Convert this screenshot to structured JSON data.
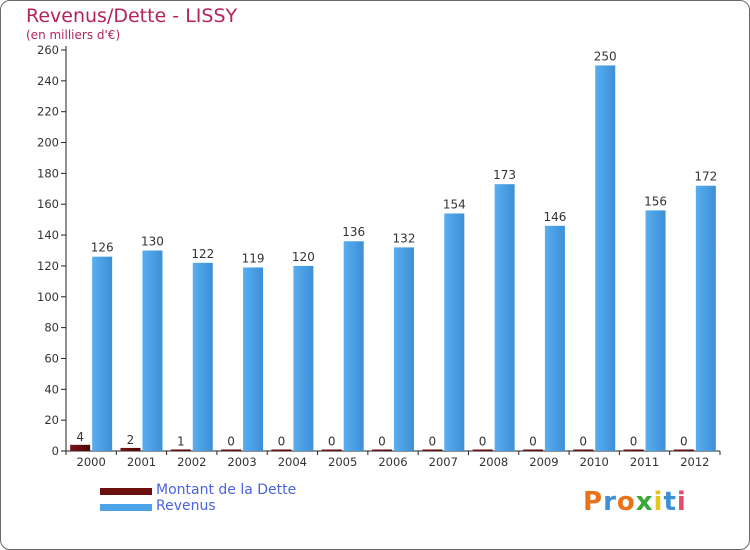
{
  "chart_data": {
    "type": "bar",
    "title": "Revenus/Dette - LISSY",
    "subtitle": "(en milliers d'€)",
    "categories": [
      "2000",
      "2001",
      "2002",
      "2003",
      "2004",
      "2005",
      "2006",
      "2007",
      "2008",
      "2009",
      "2010",
      "2011",
      "2012"
    ],
    "series": [
      {
        "name": "Montant de la Dette",
        "color": "#6b0f0f",
        "values": [
          4,
          2,
          1,
          0,
          0,
          0,
          0,
          0,
          0,
          0,
          0,
          0,
          0
        ]
      },
      {
        "name": "Revenus",
        "color": "#4da3e8",
        "values": [
          126,
          130,
          122,
          119,
          120,
          136,
          132,
          154,
          173,
          146,
          250,
          156,
          172
        ]
      }
    ],
    "y_ticks": [
      0,
      20,
      40,
      60,
      80,
      100,
      120,
      140,
      160,
      180,
      200,
      220,
      240,
      260
    ],
    "ylim": [
      0,
      260
    ],
    "grid": false,
    "legend": "bottom-left"
  },
  "logo": {
    "text": "Proxiti",
    "colors": [
      "#e8731a",
      "#3d8fd6",
      "#e8731a",
      "#3aa835",
      "#e8c51a",
      "#3d8fd6",
      "#e84a6f"
    ]
  }
}
